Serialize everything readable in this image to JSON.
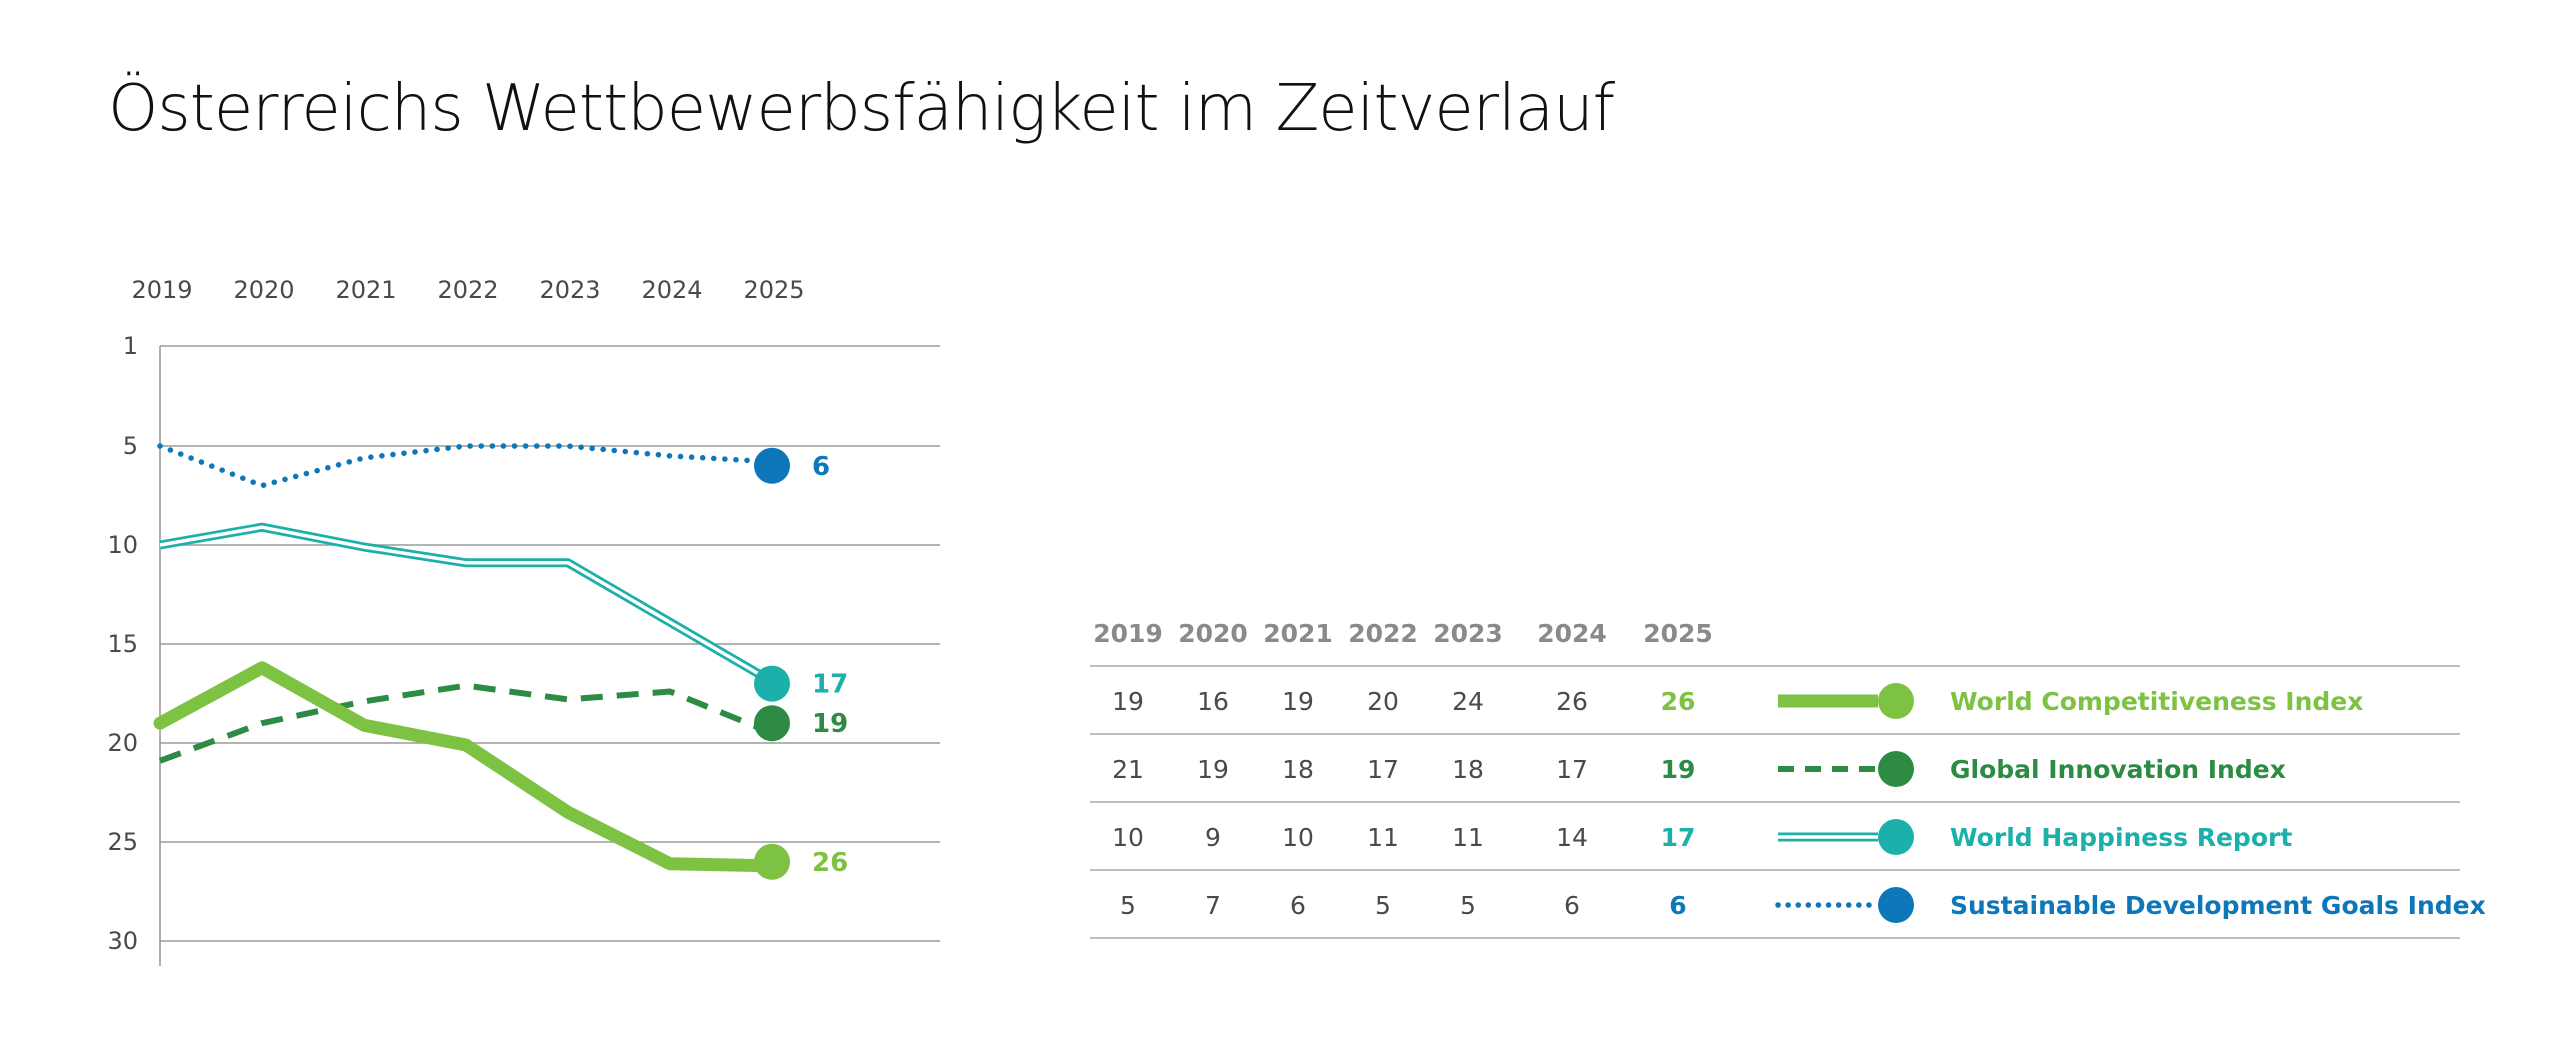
{
  "title": "Österreichs Wettbewerbsfähigkeit im Zeitverlauf",
  "chart_data": {
    "type": "line",
    "title": "Österreichs Wettbewerbsfähigkeit im Zeitverlauf",
    "x": [
      "2019",
      "2020",
      "2021",
      "2022",
      "2023",
      "2024",
      "2025"
    ],
    "y_ticks": [
      1,
      5,
      10,
      15,
      20,
      25,
      30
    ],
    "ylim": [
      1,
      30
    ],
    "y_inverted": true,
    "x_axis_position": "top",
    "grid": true,
    "series": [
      {
        "name": "World Competitiveness Index",
        "values": [
          19,
          16,
          19,
          20,
          24,
          26,
          26
        ],
        "line_values": [
          19,
          16.2,
          19.1,
          20.1,
          23.5,
          26.1,
          26.2
        ],
        "color": "#7dc242",
        "style": "thick-solid"
      },
      {
        "name": "Global Innovation Index",
        "values": [
          21,
          19,
          18,
          17,
          18,
          17,
          19
        ],
        "line_values": [
          20.9,
          19,
          17.9,
          17.1,
          17.8,
          17.4,
          19.5
        ],
        "color": "#2e8b43",
        "style": "dashed"
      },
      {
        "name": "World Happiness Report",
        "values": [
          10,
          9,
          10,
          11,
          11,
          14,
          17
        ],
        "line_values": [
          10,
          9.1,
          10.1,
          10.9,
          10.9,
          13.9,
          16.9
        ],
        "color": "#1bb0aa",
        "style": "double"
      },
      {
        "name": "Sustainable Development Goals Index",
        "values": [
          5,
          7,
          6,
          5,
          5,
          6,
          6
        ],
        "line_values": [
          5,
          7,
          5.6,
          5,
          5,
          5.5,
          5.8
        ],
        "color": "#0d77b9",
        "style": "dotted"
      }
    ],
    "end_labels": [
      "26",
      "19",
      "17",
      "6"
    ],
    "table": {
      "headers": [
        "2019",
        "2020",
        "2021",
        "2022",
        "2023",
        "2024",
        "2025"
      ],
      "rows": [
        [
          "19",
          "16",
          "19",
          "20",
          "24",
          "26",
          "26"
        ],
        [
          "21",
          "19",
          "18",
          "17",
          "18",
          "17",
          "19"
        ],
        [
          "10",
          "9",
          "10",
          "11",
          "11",
          "14",
          "17"
        ],
        [
          "5",
          "7",
          "6",
          "5",
          "5",
          "6",
          "6"
        ]
      ]
    }
  }
}
